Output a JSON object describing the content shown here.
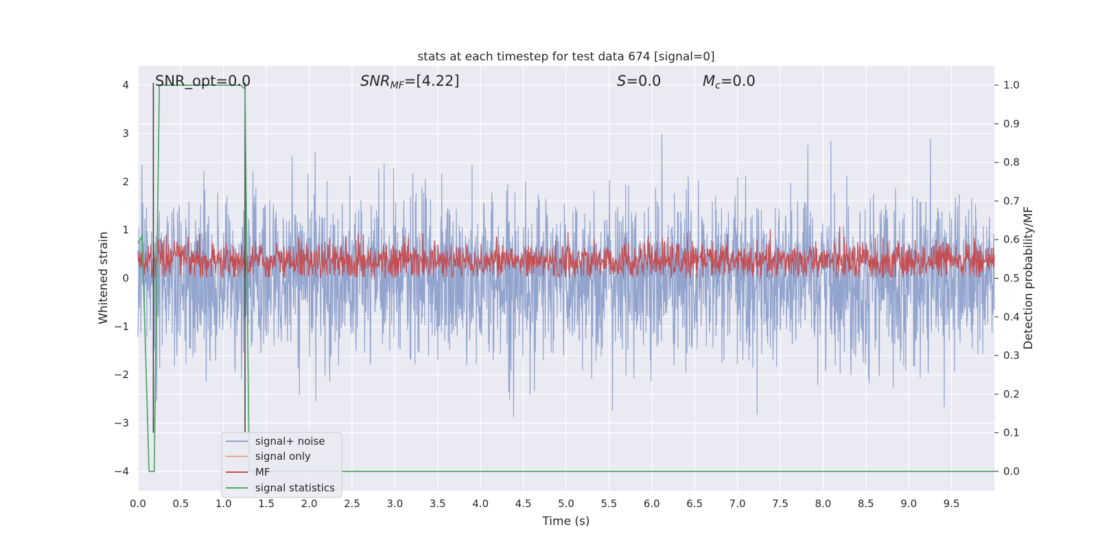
{
  "chart_data": {
    "type": "line",
    "title": "stats at each timestep for test data 674 [signal=0]",
    "xlabel": "Time (s)",
    "ylabel": "Whitened strain",
    "y2label": "Detection probability/MF",
    "xlim": [
      0.0,
      10.0
    ],
    "ylim": [
      -4.4,
      4.4
    ],
    "y2lim": [
      -0.05,
      1.05
    ],
    "x_ticks": [
      "0.0",
      "0.5",
      "1.0",
      "1.5",
      "2.0",
      "2.5",
      "3.0",
      "3.5",
      "4.0",
      "4.5",
      "5.0",
      "5.5",
      "6.0",
      "6.5",
      "7.0",
      "7.5",
      "8.0",
      "8.5",
      "9.0",
      "9.5"
    ],
    "y_ticks": [
      "4",
      "3",
      "2",
      "1",
      "0",
      "−1",
      "−2",
      "−3",
      "−4"
    ],
    "y2_ticks": [
      "1.0",
      "0.9",
      "0.8",
      "0.7",
      "0.6",
      "0.5",
      "0.4",
      "0.3",
      "0.2",
      "0.1",
      "0.0"
    ],
    "grid": true,
    "legend_position": "lower-left",
    "annotations": {
      "snr_opt": "SNR_opt=0.0",
      "snr_mf_main": "SNR",
      "snr_mf_sub": "MF",
      "snr_mf_value": "=[4.22]",
      "s_var": "S",
      "s_value": "=0.0",
      "mc_var": "M",
      "mc_sub": "c",
      "mc_value": "=0.0"
    },
    "series": [
      {
        "name": "signal+ noise",
        "color": "#8da0cb",
        "axis": "left",
        "description": "whitened noise, roughly Gaussian with std ~0.8, spikes to about ±3.5"
      },
      {
        "name": "signal only",
        "color": "#e8a98d",
        "axis": "left",
        "values": []
      },
      {
        "name": "MF",
        "color": "#c44e52",
        "axis": "right",
        "description": "matched-filter output around 0.5–0.6, peaks near 0.63"
      },
      {
        "name": "signal statistics",
        "color": "#55a868",
        "axis": "right",
        "points": [
          [
            0.0,
            0.59
          ],
          [
            0.05,
            0.61
          ],
          [
            0.13,
            0.0
          ],
          [
            0.19,
            0.0
          ],
          [
            0.25,
            1.0
          ],
          [
            1.2,
            1.0
          ],
          [
            1.25,
            0.99
          ],
          [
            1.3,
            0.0
          ],
          [
            10.0,
            0.0
          ]
        ]
      }
    ],
    "vertical_markers": {
      "color": "#444444",
      "x": [
        0.18,
        1.25
      ]
    }
  },
  "legend": {
    "items": [
      {
        "label": "signal+ noise",
        "color": "#8da0cb"
      },
      {
        "label": "signal only",
        "color": "#e8a98d"
      },
      {
        "label": "MF",
        "color": "#c44e52"
      },
      {
        "label": "signal statistics",
        "color": "#55a868"
      }
    ]
  },
  "colors": {
    "plot_bg": "#eaeaf2",
    "grid": "#ffffff"
  }
}
